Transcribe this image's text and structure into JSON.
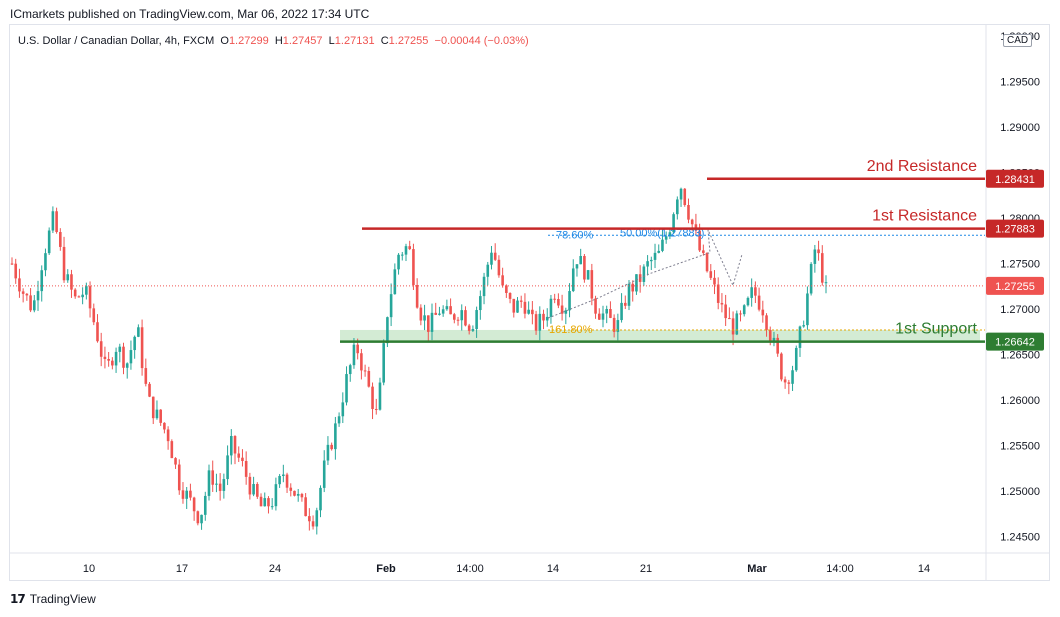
{
  "header": {
    "published": "ICmarkets published on TradingView.com, Mar 06, 2022 17:34 UTC"
  },
  "legend": {
    "symbol": "U.S. Dollar / Canadian Dollar, 4h, FXCM",
    "o_label": "O",
    "o_val": "1.27299",
    "h_label": "H",
    "h_val": "1.27457",
    "l_label": "L",
    "l_val": "1.27131",
    "c_label": "C",
    "c_val": "1.27255",
    "change": "−0.00044 (−0.03%)"
  },
  "currency": "CAD",
  "footer": {
    "brand": "TradingView",
    "logo": "17"
  },
  "colors": {
    "up": "#26a69a",
    "down": "#ef5350",
    "resistance": "#c62828",
    "support": "#2e7d32",
    "support_zone": "#c8e6c9",
    "fib": "#1e88e5",
    "fib_ext": "#e6a700",
    "price_line": "#ef5350"
  },
  "chart_data": {
    "type": "candlestick",
    "title": "U.S. Dollar / Canadian Dollar, 4h, FXCM",
    "x_ticks": [
      "10",
      "17",
      "24",
      "Feb",
      "14:00",
      "14",
      "21",
      "Mar",
      "14:00",
      "14"
    ],
    "y_ticks": [
      "1.30000",
      "1.29500",
      "1.29000",
      "1.28500",
      "1.28000",
      "1.27500",
      "1.27000",
      "1.26500",
      "1.26000",
      "1.25500",
      "1.25000",
      "1.24500"
    ],
    "ylim": [
      1.2432,
      1.3012
    ],
    "grid": false,
    "levels": [
      {
        "name": "2nd Resistance",
        "price": 1.28431,
        "label": "1.28431",
        "kind": "resistance"
      },
      {
        "name": "1st Resistance",
        "price": 1.27883,
        "label": "1.27883",
        "kind": "resistance"
      },
      {
        "name": "1st Support",
        "price": 1.26642,
        "label": "1.26642",
        "kind": "support"
      }
    ],
    "current_price": {
      "price": 1.27255,
      "label": "1.27255"
    },
    "fib_labels": [
      {
        "text": "78.60%",
        "price": 1.2781
      },
      {
        "text": "50.00%(1.27883)",
        "price": 1.2783
      },
      {
        "text": "161.80%",
        "price": 1.2677
      }
    ],
    "candles_path": [
      1.275,
      1.272,
      1.27,
      1.276,
      1.28,
      1.274,
      1.271,
      1.272,
      1.268,
      1.263,
      1.266,
      1.264,
      1.268,
      1.26,
      1.258,
      1.256,
      1.251,
      1.249,
      1.247,
      1.252,
      1.25,
      1.255,
      1.253,
      1.25,
      1.248,
      1.249,
      1.252,
      1.25,
      1.248,
      1.247,
      1.253,
      1.257,
      1.262,
      1.266,
      1.262,
      1.258,
      1.27,
      1.276,
      1.277,
      1.27,
      1.268,
      1.27,
      1.269,
      1.27,
      1.268,
      1.272,
      1.277,
      1.272,
      1.27,
      1.271,
      1.268,
      1.269,
      1.272,
      1.27,
      1.276,
      1.274,
      1.27,
      1.269,
      1.268,
      1.272,
      1.273,
      1.275,
      1.276,
      1.279,
      1.284,
      1.28,
      1.276,
      1.273,
      1.27,
      1.268,
      1.269,
      1.272,
      1.27,
      1.266,
      1.262,
      1.264,
      1.27,
      1.277,
      1.272
    ],
    "indicator_path": [
      1.269,
      1.2712,
      1.2739,
      1.2762,
      1.2787,
      1.2726,
      1.276
    ],
    "x_dates": [
      "10",
      "17",
      "24",
      "Feb",
      "14:00",
      "14",
      "21",
      "Mar",
      "14:00",
      "14"
    ]
  }
}
